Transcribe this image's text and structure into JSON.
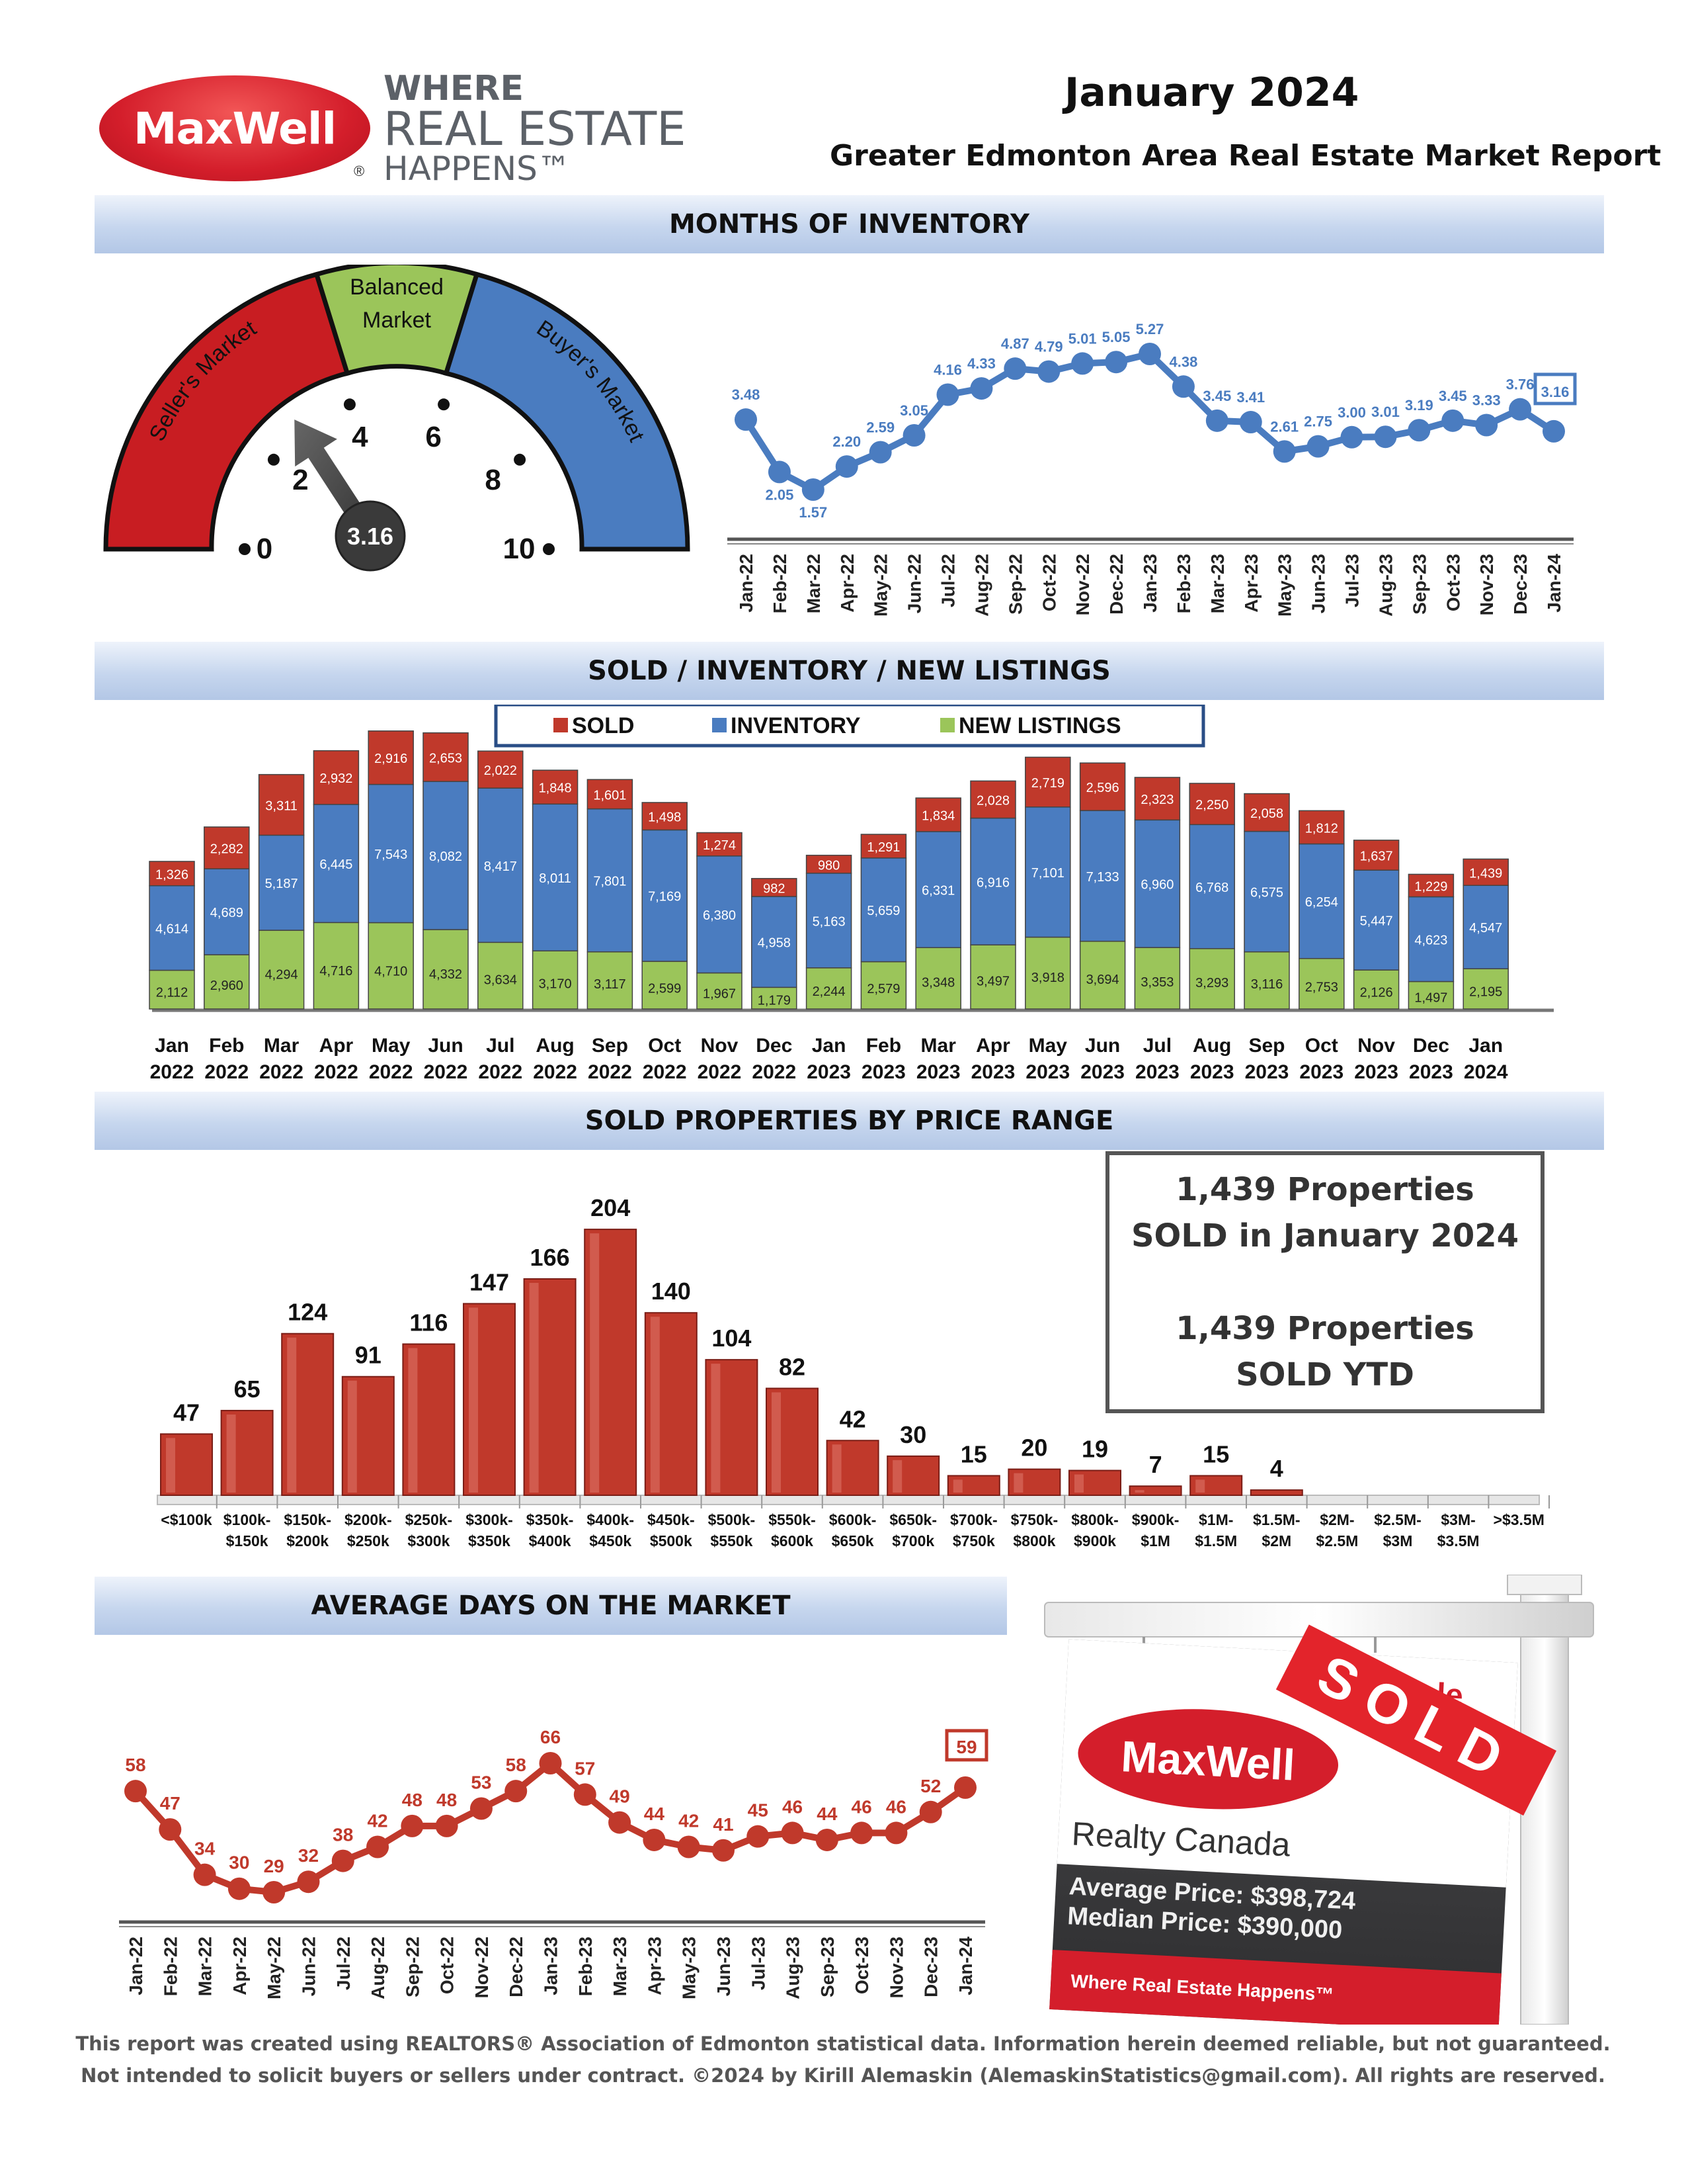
{
  "header": {
    "title": "January 2024",
    "subtitle": "Greater Edmonton Area Real Estate Market Report",
    "logo_text": "MaxWell",
    "tagline": [
      "WHERE",
      "REAL ESTATE",
      "HAPPENS™"
    ]
  },
  "sections": {
    "months_of_inventory": "MONTHS OF INVENTORY",
    "sold_inventory_listings": "SOLD / INVENTORY / NEW LISTINGS",
    "price_range": "SOLD PROPERTIES BY PRICE RANGE",
    "days_on_market": "AVERAGE DAYS ON THE MARKET"
  },
  "gauge": {
    "zones": [
      "Seller's Market",
      "Balanced Market",
      "Buyer's Market"
    ],
    "ticks": [
      "0",
      "2",
      "4",
      "6",
      "8",
      "10"
    ],
    "value": 3.16,
    "value_label": "3.16",
    "colors": {
      "seller": "#c81d22",
      "balanced": "#9bc55a",
      "buyer": "#4a7cc0"
    }
  },
  "summary": {
    "line1": "1,439 Properties",
    "line2": "SOLD in January 2024",
    "line3": "1,439 Properties",
    "line4": "SOLD YTD"
  },
  "sign": {
    "sold": "SOLD",
    "sale": "Sale",
    "brand": "MaxWell",
    "company": "Realty Canada",
    "average_price": "Average Price: $398,724",
    "median_price": "Median Price: $390,000",
    "tagline": "Where Real Estate Happens™"
  },
  "footer": {
    "line1": "This report was created using REALTORS® Association of Edmonton statistical data. Information herein deemed reliable, but not guaranteed.",
    "line2": "Not intended to solicit buyers or sellers under contract. ©2024 by Kirill Alemaskin (AlemaskinStatistics@gmail.com). All rights are reserved."
  },
  "chart_data": [
    {
      "id": "months_of_inventory",
      "type": "line",
      "x": [
        "Jan-22",
        "Feb-22",
        "Mar-22",
        "Apr-22",
        "May-22",
        "Jun-22",
        "Jul-22",
        "Aug-22",
        "Sep-22",
        "Oct-22",
        "Nov-22",
        "Dec-22",
        "Jan-23",
        "Feb-23",
        "Mar-23",
        "Apr-23",
        "May-23",
        "Jun-23",
        "Jul-23",
        "Aug-23",
        "Sep-23",
        "Oct-23",
        "Nov-23",
        "Dec-23",
        "Jan-24"
      ],
      "values": [
        3.48,
        2.05,
        1.57,
        2.2,
        2.59,
        3.05,
        4.16,
        4.33,
        4.87,
        4.79,
        5.01,
        5.05,
        5.27,
        4.38,
        3.45,
        3.41,
        2.61,
        2.75,
        3.0,
        3.01,
        3.19,
        3.45,
        3.33,
        3.76,
        3.16
      ],
      "labels": [
        "3.48",
        "2.05",
        "1.57",
        "2.20",
        "2.59",
        "3.05",
        "4.16",
        "4.33",
        "4.87",
        "4.79",
        "5.01",
        "5.05",
        "5.27",
        "4.38",
        "3.45",
        "3.41",
        "2.61",
        "2.75",
        "3.00",
        "3.01",
        "3.19",
        "3.45",
        "3.33",
        "3.76",
        "3.16"
      ],
      "color": "#4a7cc0"
    },
    {
      "id": "sold_inventory_new_listings",
      "type": "bar",
      "legend": [
        "SOLD",
        "INVENTORY",
        "NEW LISTINGS"
      ],
      "categories": [
        [
          "Jan",
          "2022"
        ],
        [
          "Feb",
          "2022"
        ],
        [
          "Mar",
          "2022"
        ],
        [
          "Apr",
          "2022"
        ],
        [
          "May",
          "2022"
        ],
        [
          "Jun",
          "2022"
        ],
        [
          "Jul",
          "2022"
        ],
        [
          "Aug",
          "2022"
        ],
        [
          "Sep",
          "2022"
        ],
        [
          "Oct",
          "2022"
        ],
        [
          "Nov",
          "2022"
        ],
        [
          "Dec",
          "2022"
        ],
        [
          "Jan",
          "2023"
        ],
        [
          "Feb",
          "2023"
        ],
        [
          "Mar",
          "2023"
        ],
        [
          "Apr",
          "2023"
        ],
        [
          "May",
          "2023"
        ],
        [
          "Jun",
          "2023"
        ],
        [
          "Jul",
          "2023"
        ],
        [
          "Aug",
          "2023"
        ],
        [
          "Sep",
          "2023"
        ],
        [
          "Oct",
          "2023"
        ],
        [
          "Nov",
          "2023"
        ],
        [
          "Dec",
          "2023"
        ],
        [
          "Jan",
          "2024"
        ]
      ],
      "series": [
        {
          "name": "NEW LISTINGS",
          "color": "#9bc55a",
          "values": [
            2112,
            2960,
            4294,
            4716,
            4710,
            4332,
            3634,
            3170,
            3117,
            2599,
            1967,
            1179,
            2244,
            2579,
            3348,
            3497,
            3918,
            3694,
            3353,
            3293,
            3116,
            2753,
            2126,
            1497,
            2195
          ],
          "labels": [
            "2,112",
            "2,960",
            "4,294",
            "4,716",
            "4,710",
            "4,332",
            "3,634",
            "3,170",
            "3,117",
            "2,599",
            "1,967",
            "1,179",
            "2,244",
            "2,579",
            "3,348",
            "3,497",
            "3,918",
            "3,694",
            "3,353",
            "3,293",
            "3,116",
            "2,753",
            "2,126",
            "1,497",
            "2,195"
          ]
        },
        {
          "name": "INVENTORY",
          "color": "#4a7cc0",
          "values": [
            4614,
            4689,
            5187,
            6445,
            7543,
            8082,
            8417,
            8011,
            7801,
            7169,
            6380,
            4958,
            5163,
            5659,
            6331,
            6916,
            7101,
            7133,
            6960,
            6768,
            6575,
            6254,
            5447,
            4623,
            4547
          ],
          "labels": [
            "4,614",
            "4,689",
            "5,187",
            "6,445",
            "7,543",
            "8,082",
            "8,417",
            "8,011",
            "7,801",
            "7,169",
            "6,380",
            "4,958",
            "5,163",
            "5,659",
            "6,331",
            "6,916",
            "7,101",
            "7,133",
            "6,960",
            "6,768",
            "6,575",
            "6,254",
            "5,447",
            "4,623",
            "4,547"
          ]
        },
        {
          "name": "SOLD",
          "color": "#c0392b",
          "values": [
            1326,
            2282,
            3311,
            2932,
            2916,
            2653,
            2022,
            1848,
            1601,
            1498,
            1274,
            982,
            980,
            1291,
            1834,
            2028,
            2719,
            2596,
            2323,
            2250,
            2058,
            1812,
            1637,
            1229,
            1439
          ],
          "labels": [
            "1,326",
            "2,282",
            "3,311",
            "2,932",
            "2,916",
            "2,653",
            "2,022",
            "1,848",
            "1,601",
            "1,498",
            "1,274",
            "982",
            "980",
            "1,291",
            "1,834",
            "2,028",
            "2,719",
            "2,596",
            "2,323",
            "2,250",
            "2,058",
            "1,812",
            "1,637",
            "1,229",
            "1,439"
          ]
        }
      ]
    },
    {
      "id": "sold_by_price_range",
      "type": "bar",
      "categories": [
        [
          "<$100k",
          ""
        ],
        [
          "$100k-",
          "$150k"
        ],
        [
          "$150k-",
          "$200k"
        ],
        [
          "$200k-",
          "$250k"
        ],
        [
          "$250k-",
          "$300k"
        ],
        [
          "$300k-",
          "$350k"
        ],
        [
          "$350k-",
          "$400k"
        ],
        [
          "$400k-",
          "$450k"
        ],
        [
          "$450k-",
          "$500k"
        ],
        [
          "$500k-",
          "$550k"
        ],
        [
          "$550k-",
          "$600k"
        ],
        [
          "$600k-",
          "$650k"
        ],
        [
          "$650k-",
          "$700k"
        ],
        [
          "$700k-",
          "$750k"
        ],
        [
          "$750k-",
          "$800k"
        ],
        [
          "$800k-",
          "$900k"
        ],
        [
          "$900k-",
          "$1M"
        ],
        [
          "$1M-",
          "$1.5M"
        ],
        [
          "$1.5M-",
          "$2M"
        ],
        [
          "$2M-",
          "$2.5M"
        ],
        [
          "$2.5M-",
          "$3M"
        ],
        [
          "$3M-",
          "$3.5M"
        ],
        [
          ">$3.5M",
          ""
        ]
      ],
      "values": [
        47,
        65,
        124,
        91,
        116,
        147,
        166,
        204,
        140,
        104,
        82,
        42,
        30,
        15,
        20,
        19,
        7,
        15,
        4,
        0,
        0,
        0,
        0
      ],
      "labels": [
        "47",
        "65",
        "124",
        "91",
        "116",
        "147",
        "166",
        "204",
        "140",
        "104",
        "82",
        "42",
        "30",
        "15",
        "20",
        "19",
        "7",
        "15",
        "4",
        "",
        "",
        "",
        ""
      ],
      "color": "#c0392b"
    },
    {
      "id": "average_days_on_market",
      "type": "line",
      "x": [
        "Jan-22",
        "Feb-22",
        "Mar-22",
        "Apr-22",
        "May-22",
        "Jun-22",
        "Jul-22",
        "Aug-22",
        "Sep-22",
        "Oct-22",
        "Nov-22",
        "Dec-22",
        "Jan-23",
        "Feb-23",
        "Mar-23",
        "Apr-23",
        "May-23",
        "Jun-23",
        "Jul-23",
        "Aug-23",
        "Sep-23",
        "Oct-23",
        "Nov-23",
        "Dec-23",
        "Jan-24"
      ],
      "values": [
        58,
        47,
        34,
        30,
        29,
        32,
        38,
        42,
        48,
        48,
        53,
        58,
        66,
        57,
        49,
        44,
        42,
        41,
        45,
        46,
        44,
        46,
        46,
        52,
        59
      ],
      "labels": [
        "58",
        "47",
        "34",
        "30",
        "29",
        "32",
        "38",
        "42",
        "48",
        "48",
        "53",
        "58",
        "66",
        "57",
        "49",
        "44",
        "42",
        "41",
        "45",
        "46",
        "44",
        "46",
        "46",
        "52",
        "59"
      ],
      "color": "#c0392b"
    }
  ]
}
